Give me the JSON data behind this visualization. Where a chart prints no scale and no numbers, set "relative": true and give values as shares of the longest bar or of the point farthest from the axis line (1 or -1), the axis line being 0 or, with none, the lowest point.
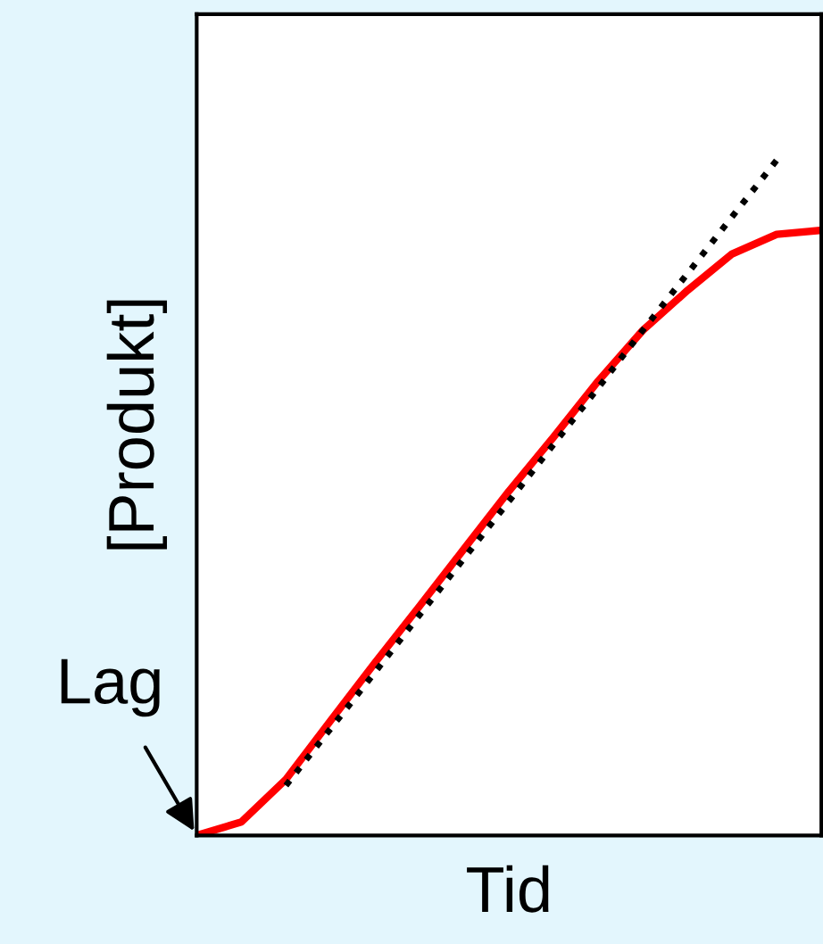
{
  "chart_data": {
    "type": "line",
    "relative": true,
    "xlabel": "Tid",
    "ylabel": "[Produkt]",
    "annotations": [
      "Lag"
    ],
    "categories": [
      null,
      null,
      null,
      null,
      null,
      null,
      null,
      null,
      null,
      null,
      null,
      null,
      null,
      null,
      null
    ],
    "series": [
      {
        "color": "#ff0000",
        "line_style": "solid",
        "values": [
          0,
          0.02,
          0.083,
          0.17,
          0.256,
          0.34,
          0.425,
          0.51,
          0.59,
          0.673,
          0.748,
          0.807,
          0.861,
          0.89,
          0.896
        ]
      },
      {
        "color": "#000000",
        "line_style": "dotted",
        "values": [
          null,
          null,
          0.074,
          0.158,
          0.242,
          0.327,
          0.411,
          0.495,
          0.579,
          0.663,
          0.748,
          0.832,
          0.916,
          1,
          null
        ]
      }
    ]
  }
}
